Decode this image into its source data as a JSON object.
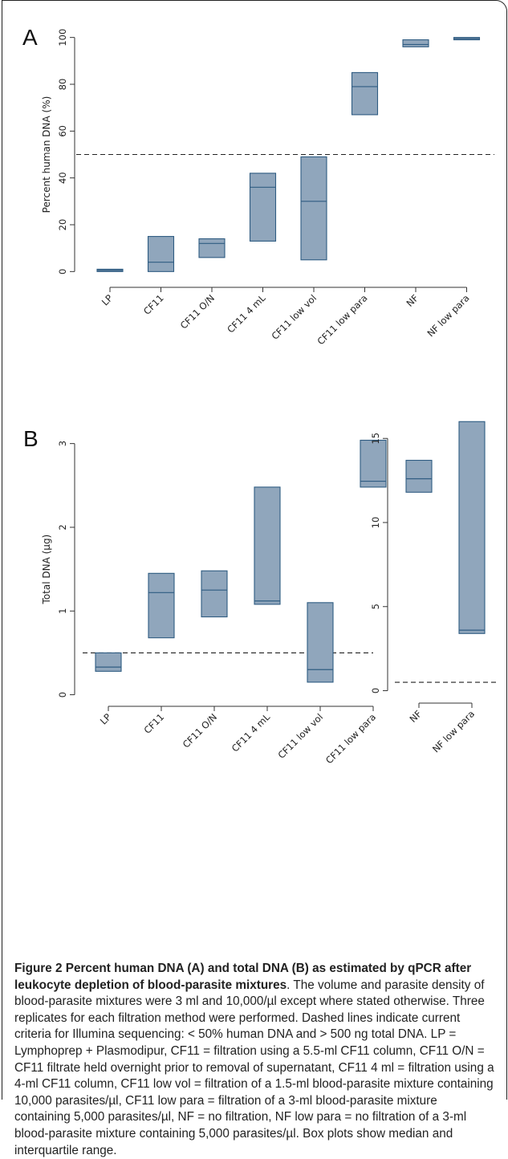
{
  "chart_data": [
    {
      "type": "box",
      "panel_label": "A",
      "ylabel": "Percent human DNA (%)",
      "ylim": [
        -4,
        104
      ],
      "yticks": [
        0,
        20,
        40,
        60,
        80,
        100
      ],
      "reference_line": 50,
      "categories": [
        "LP",
        "CF11",
        "CF11 O/N",
        "CF11 4 mL",
        "CF11 low vol",
        "CF11 low para",
        "NF",
        "NF low para"
      ],
      "boxes": [
        {
          "q1": 0,
          "median": 0.5,
          "q3": 1
        },
        {
          "q1": 0,
          "median": 4,
          "q3": 15
        },
        {
          "q1": 6,
          "median": 12,
          "q3": 14
        },
        {
          "q1": 13,
          "median": 36,
          "q3": 42
        },
        {
          "q1": 5,
          "median": 30,
          "q3": 49
        },
        {
          "q1": 67,
          "median": 79,
          "q3": 85
        },
        {
          "q1": 96,
          "median": 97,
          "q3": 99
        },
        {
          "q1": 99,
          "median": 99.5,
          "q3": 100
        }
      ]
    },
    {
      "type": "box",
      "panel_label": "B",
      "ylabel": "Total DNA (µg)",
      "ylim": [
        -0.1,
        3.15
      ],
      "yticks": [
        0,
        1,
        2,
        3
      ],
      "reference_line": 0.5,
      "categories": [
        "LP",
        "CF11",
        "CF11 O/N",
        "CF11 4 mL",
        "CF11 low vol",
        "CF11 low para"
      ],
      "boxes": [
        {
          "q1": 0.28,
          "median": 0.33,
          "q3": 0.5
        },
        {
          "q1": 0.68,
          "median": 1.22,
          "q3": 1.45
        },
        {
          "q1": 0.93,
          "median": 1.25,
          "q3": 1.48
        },
        {
          "q1": 1.08,
          "median": 1.12,
          "q3": 2.48
        },
        {
          "q1": 0.15,
          "median": 0.3,
          "q3": 1.1
        },
        {
          "q1": 2.48,
          "median": 2.55,
          "q3": 3.04
        }
      ]
    },
    {
      "type": "box",
      "ylabel": "",
      "ylim": [
        -0.5,
        16.3
      ],
      "yticks": [
        0,
        5,
        10,
        15
      ],
      "reference_line": 0.5,
      "categories": [
        "NF",
        "NF low para"
      ],
      "boxes": [
        {
          "q1": 11.8,
          "median": 12.6,
          "q3": 13.7
        },
        {
          "q1": 3.4,
          "median": 3.6,
          "q3": 16
        }
      ]
    }
  ],
  "colors": {
    "box_fill": "#90a6bc",
    "box_stroke": "#2f5c82"
  },
  "caption": {
    "bold": "Figure 2 Percent human DNA (A) and total DNA (B) as estimated by qPCR after leukocyte depletion of blood-parasite mixtures",
    "text": ". The volume and parasite density of blood-parasite mixtures were 3 ml and 10,000/µl except where stated otherwise. Three replicates for each filtration method were performed. Dashed lines indicate current criteria for Illumina sequencing: < 50% human DNA and > 500 ng total DNA. LP = Lymphoprep + Plasmodipur, CF11 = filtration using a 5.5-ml CF11 column, CF11 O/N = CF11 filtrate held overnight prior to removal of supernatant, CF11 4 ml = filtration using a 4-ml CF11 column, CF11 low vol = filtration of a 1.5-ml blood-parasite mixture containing 10,000 parasites/µl, CF11 low para = filtration of a 3-ml blood-parasite mixture containing 5,000 parasites/µl, NF = no filtration, NF low para = no filtration of a 3-ml blood-parasite mixture containing 5,000 parasites/µl. Box plots show median and interquartile range."
  }
}
